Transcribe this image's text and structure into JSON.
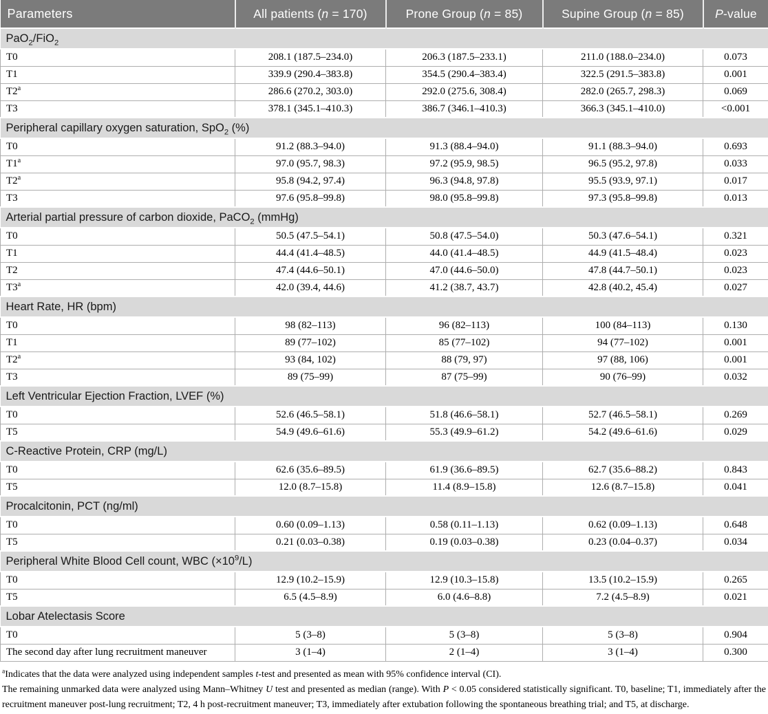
{
  "colors": {
    "header_bg": "#7b7b7b",
    "header_text": "#ffffff",
    "section_bg": "#d9d9d9",
    "border": "#adadad",
    "text": "#000000"
  },
  "table": {
    "columns": [
      {
        "label": "Parameters"
      },
      {
        "label": "All patients (*n* = 170)"
      },
      {
        "label": "Prone Group (*n* = 85)"
      },
      {
        "label": "Supine Group (*n* = 85)"
      },
      {
        "label": "*P*-value"
      }
    ],
    "sections": [
      {
        "title": "PaO~2~/FiO~2~",
        "rows": [
          {
            "label": "T0",
            "values": [
              "208.1 (187.5–234.0)",
              "206.3 (187.5–233.1)",
              "211.0 (188.0–234.0)",
              "0.073"
            ]
          },
          {
            "label": "T1",
            "values": [
              "339.9 (290.4–383.8)",
              "354.5 (290.4–383.4)",
              "322.5 (291.5–383.8)",
              "0.001"
            ]
          },
          {
            "label": "T2^a^",
            "values": [
              "286.6 (270.2, 303.0)",
              "292.0 (275.6, 308.4)",
              "282.0 (265.7, 298.3)",
              "0.069"
            ]
          },
          {
            "label": "T3",
            "values": [
              "378.1 (345.1–410.3)",
              "386.7 (346.1–410.3)",
              "366.3 (345.1–410.0)",
              "<0.001"
            ]
          }
        ]
      },
      {
        "title": "Peripheral capillary oxygen saturation, SpO~2~ (%)",
        "rows": [
          {
            "label": "T0",
            "values": [
              "91.2 (88.3–94.0)",
              "91.3 (88.4–94.0)",
              "91.1 (88.3–94.0)",
              "0.693"
            ]
          },
          {
            "label": "T1^a^",
            "values": [
              "97.0 (95.7, 98.3)",
              "97.2 (95.9, 98.5)",
              "96.5 (95.2, 97.8)",
              "0.033"
            ]
          },
          {
            "label": "T2^a^",
            "values": [
              "95.8 (94.2, 97.4)",
              "96.3 (94.8, 97.8)",
              "95.5 (93.9, 97.1)",
              "0.017"
            ]
          },
          {
            "label": "T3",
            "values": [
              "97.6 (95.8–99.8)",
              "98.0 (95.8–99.8)",
              "97.3 (95.8–99.8)",
              "0.013"
            ]
          }
        ]
      },
      {
        "title": "Arterial partial pressure of carbon dioxide, PaCO~2~ (mmHg)",
        "rows": [
          {
            "label": "T0",
            "values": [
              "50.5 (47.5–54.1)",
              "50.8 (47.5–54.0)",
              "50.3 (47.6–54.1)",
              "0.321"
            ]
          },
          {
            "label": "T1",
            "values": [
              "44.4 (41.4–48.5)",
              "44.0 (41.4–48.5)",
              "44.9 (41.5–48.4)",
              "0.023"
            ]
          },
          {
            "label": "T2",
            "values": [
              "47.4 (44.6–50.1)",
              "47.0 (44.6–50.0)",
              "47.8 (44.7–50.1)",
              "0.023"
            ]
          },
          {
            "label": "T3^a^",
            "values": [
              "42.0 (39.4, 44.6)",
              "41.2 (38.7, 43.7)",
              "42.8 (40.2, 45.4)",
              "0.027"
            ]
          }
        ]
      },
      {
        "title": "Heart Rate, HR (bpm)",
        "rows": [
          {
            "label": "T0",
            "values": [
              "98 (82–113)",
              "96 (82–113)",
              "100 (84–113)",
              "0.130"
            ]
          },
          {
            "label": "T1",
            "values": [
              "89 (77–102)",
              "85 (77–102)",
              "94 (77–102)",
              "0.001"
            ]
          },
          {
            "label": "T2^a^",
            "values": [
              "93 (84, 102)",
              "88 (79, 97)",
              "97 (88, 106)",
              "0.001"
            ]
          },
          {
            "label": "T3",
            "values": [
              "89 (75–99)",
              "87 (75–99)",
              "90 (76–99)",
              "0.032"
            ]
          }
        ]
      },
      {
        "title": "Left Ventricular Ejection Fraction, LVEF (%)",
        "rows": [
          {
            "label": "T0",
            "values": [
              "52.6 (46.5–58.1)",
              "51.8 (46.6–58.1)",
              "52.7 (46.5–58.1)",
              "0.269"
            ]
          },
          {
            "label": "T5",
            "values": [
              "54.9 (49.6–61.6)",
              "55.3 (49.9–61.2)",
              "54.2 (49.6–61.6)",
              "0.029"
            ]
          }
        ]
      },
      {
        "title": "C-Reactive Protein, CRP (mg/L)",
        "rows": [
          {
            "label": "T0",
            "values": [
              "62.6 (35.6–89.5)",
              "61.9 (36.6–89.5)",
              "62.7 (35.6–88.2)",
              "0.843"
            ]
          },
          {
            "label": "T5",
            "values": [
              "12.0 (8.7–15.8)",
              "11.4 (8.9–15.8)",
              "12.6 (8.7–15.8)",
              "0.041"
            ]
          }
        ]
      },
      {
        "title": "Procalcitonin, PCT (ng/ml)",
        "rows": [
          {
            "label": "T0",
            "values": [
              "0.60 (0.09–1.13)",
              "0.58 (0.11–1.13)",
              "0.62 (0.09–1.13)",
              "0.648"
            ]
          },
          {
            "label": "T5",
            "values": [
              "0.21 (0.03–0.38)",
              "0.19 (0.03–0.38)",
              "0.23 (0.04–0.37)",
              "0.034"
            ]
          }
        ]
      },
      {
        "title": "Peripheral White Blood Cell count, WBC (×10^9^/L)",
        "rows": [
          {
            "label": "T0",
            "values": [
              "12.9 (10.2–15.9)",
              "12.9 (10.3–15.8)",
              "13.5 (10.2–15.9)",
              "0.265"
            ]
          },
          {
            "label": "T5",
            "values": [
              "6.5 (4.5–8.9)",
              "6.0 (4.6–8.8)",
              "7.2 (4.5–8.9)",
              "0.021"
            ]
          }
        ]
      },
      {
        "title": "Lobar Atelectasis Score",
        "rows": [
          {
            "label": "T0",
            "values": [
              "5 (3–8)",
              "5 (3–8)",
              "5 (3–8)",
              "0.904"
            ]
          },
          {
            "label": "The second day after lung recruitment maneuver",
            "values": [
              "3 (1–4)",
              "2 (1–4)",
              "3 (1–4)",
              "0.300"
            ]
          }
        ]
      }
    ]
  },
  "footnotes": [
    "^a^Indicates that the data were analyzed using independent samples *t*-test and presented as mean with 95% confidence interval (CI).",
    "The remaining unmarked data were analyzed using Mann–Whitney *U* test and presented as median (range). With *P* < 0.05 considered statistically significant. T0, baseline; T1, immediately after the recruitment maneuver post-lung recruitment; T2, 4 h post-recruitment maneuver; T3, immediately after extubation following the spontaneous breathing trial; and T5, at discharge."
  ]
}
